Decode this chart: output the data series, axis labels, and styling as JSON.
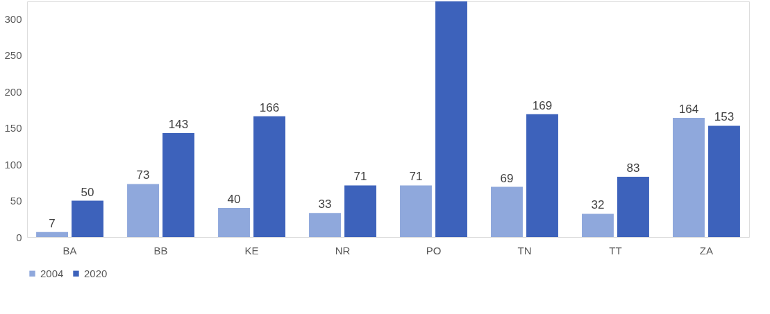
{
  "chart_data": {
    "type": "bar",
    "categories": [
      "BA",
      "BB",
      "KE",
      "NR",
      "PO",
      "TN",
      "TT",
      "ZA"
    ],
    "series": [
      {
        "name": "2004",
        "color": "#8fa8dc",
        "values": [
          7,
          73,
          40,
          33,
          71,
          69,
          32,
          164
        ],
        "value_labels": [
          "7",
          "73",
          "40",
          "33",
          "71",
          "69",
          "32",
          "164"
        ]
      },
      {
        "name": "2020",
        "color": "#3d62bb",
        "values": [
          50,
          143,
          166,
          71,
          324,
          169,
          83,
          153
        ],
        "value_labels": [
          "50",
          "143",
          "166",
          "71",
          null,
          "169",
          "83",
          "153"
        ]
      }
    ],
    "ylim": [
      0,
      324
    ],
    "yticks": [
      0,
      50,
      100,
      150,
      200,
      250,
      300
    ],
    "grid": false,
    "legend": "bottom"
  }
}
